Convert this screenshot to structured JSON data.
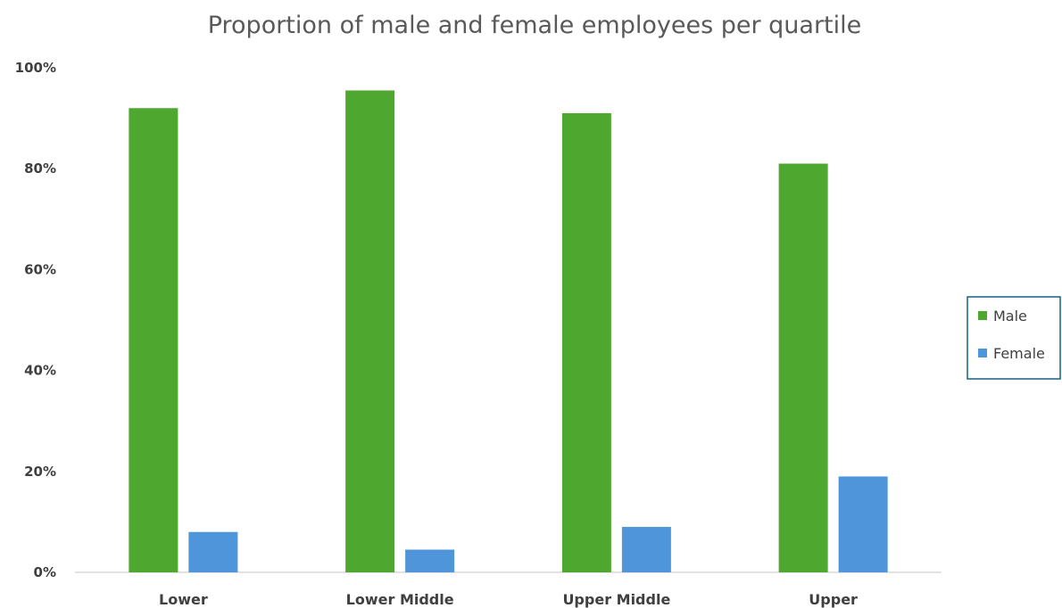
{
  "chart_data": {
    "type": "bar",
    "title": "Proportion of male and female employees per quartile",
    "xlabel": "",
    "ylabel": "",
    "categories": [
      "Lower",
      "Lower Middle",
      "Upper Middle",
      "Upper"
    ],
    "series": [
      {
        "name": "Male",
        "values": [
          92,
          95.5,
          91,
          81
        ],
        "color": "#4ea72e"
      },
      {
        "name": "Female",
        "values": [
          8,
          4.5,
          9,
          19
        ],
        "color": "#4e95d9"
      }
    ],
    "ylim": [
      0,
      100
    ],
    "yticks": [
      "0%",
      "20%",
      "40%",
      "60%",
      "80%",
      "100%"
    ],
    "ytick_values": [
      0,
      20,
      40,
      60,
      80,
      100
    ],
    "grid": false,
    "legend": {
      "position": "right",
      "border_color": "#156082"
    }
  }
}
